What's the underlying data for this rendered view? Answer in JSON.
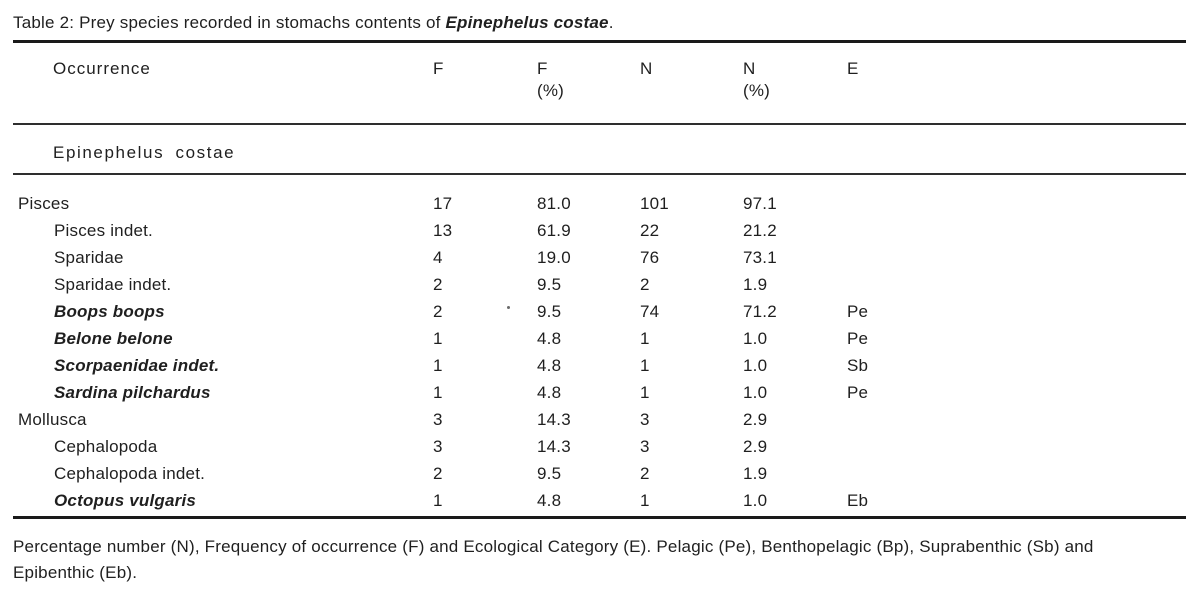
{
  "caption": {
    "prefix": "Table 2: Prey species recorded in stomachs contents of ",
    "species": "Epinephelus costae",
    "suffix": "."
  },
  "table": {
    "columns": [
      {
        "line1": "Occurrence",
        "line2": ""
      },
      {
        "line1": "F",
        "line2": ""
      },
      {
        "line1": "F",
        "line2": "(%)"
      },
      {
        "line1": "N",
        "line2": ""
      },
      {
        "line1": "N",
        "line2": "(%)"
      },
      {
        "line1": "E",
        "line2": ""
      }
    ],
    "subheader": "Epinephelus costae",
    "rows": [
      {
        "name": "Pisces",
        "indent": false,
        "italic": false,
        "f": "17",
        "fpct": "81.0",
        "n": "101",
        "npct": "97.1",
        "e": ""
      },
      {
        "name": "Pisces indet.",
        "indent": true,
        "italic": false,
        "f": "13",
        "fpct": "61.9",
        "n": "22",
        "npct": "21.2",
        "e": ""
      },
      {
        "name": "Sparidae",
        "indent": true,
        "italic": false,
        "f": "4",
        "fpct": "19.0",
        "n": "76",
        "npct": "73.1",
        "e": ""
      },
      {
        "name": "Sparidae indet.",
        "indent": true,
        "italic": false,
        "f": "2",
        "fpct": "9.5",
        "n": "2",
        "npct": "1.9",
        "e": ""
      },
      {
        "name": "Boops boops",
        "indent": true,
        "italic": true,
        "f": "2",
        "fpct": "9.5",
        "n": "74",
        "npct": "71.2",
        "e": "Pe"
      },
      {
        "name": "Belone belone",
        "indent": true,
        "italic": true,
        "f": "1",
        "fpct": "4.8",
        "n": "1",
        "npct": "1.0",
        "e": "Pe"
      },
      {
        "name": "Scorpaenidae indet.",
        "indent": true,
        "italic": true,
        "f": "1",
        "fpct": "4.8",
        "n": "1",
        "npct": "1.0",
        "e": "Sb"
      },
      {
        "name": "Sardina pilchardus",
        "indent": true,
        "italic": true,
        "f": "1",
        "fpct": "4.8",
        "n": "1",
        "npct": "1.0",
        "e": "Pe"
      },
      {
        "name": "Mollusca",
        "indent": false,
        "italic": false,
        "f": "3",
        "fpct": "14.3",
        "n": "3",
        "npct": "2.9",
        "e": ""
      },
      {
        "name": "Cephalopoda",
        "indent": true,
        "italic": false,
        "f": "3",
        "fpct": "14.3",
        "n": "3",
        "npct": "2.9",
        "e": ""
      },
      {
        "name": "Cephalopoda indet.",
        "indent": true,
        "italic": false,
        "f": "2",
        "fpct": "9.5",
        "n": "2",
        "npct": "1.9",
        "e": ""
      },
      {
        "name": "Octopus vulgaris",
        "indent": true,
        "italic": true,
        "f": "1",
        "fpct": "4.8",
        "n": "1",
        "npct": "1.0",
        "e": "Eb"
      }
    ]
  },
  "footnote": {
    "line1": "Percentage number (N), Frequency of occurrence (F) and Ecological Category (E). Pelagic (Pe), Benthopelagic (Bp), Suprabenthic (Sb) and",
    "line2": "Epibenthic (Eb)."
  },
  "colors": {
    "text": "#1f1f1f",
    "rule_thick": "#1a1a1a",
    "rule_thin": "#2e2e2e",
    "background": "#ffffff"
  }
}
